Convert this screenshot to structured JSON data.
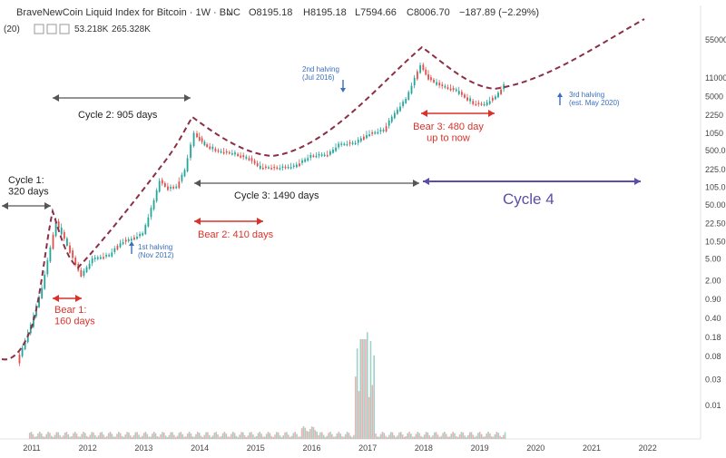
{
  "header": {
    "title": "BraveNewCoin Liquid Index for Bitcoin · 1W · BNC",
    "chevron_icon": "chevron-down-icon",
    "open": "O8195.18",
    "high": "H8195.18",
    "low": "L7594.66",
    "close": "C8006.70",
    "change": "−187.89 (−2.29%)",
    "change_color": "#e0504c",
    "ohlc_color": "#333333"
  },
  "volume_legend": {
    "label": "(20)",
    "value_1": "53.218K",
    "value_2": "265.328K",
    "value_1_color": "#e0504c",
    "value_2_color": "#26a69a"
  },
  "colors": {
    "candle_up": "#26a69a",
    "candle_down": "#e0504c",
    "model_curve": "#8b2f46",
    "cycle_arrow": "#555555",
    "bear_arrow": "#d9322b",
    "halving_arrow": "#3a6fbf",
    "cycle4_arrow": "#5c4ea8"
  },
  "chart_data": {
    "type": "line",
    "title": "BraveNewCoin Liquid Index for Bitcoin",
    "y_scale": "log",
    "grid": false,
    "x_ticks": [
      "2011",
      "2012",
      "2013",
      "2014",
      "2015",
      "2016",
      "2017",
      "2018",
      "2019",
      "2020",
      "2021",
      "2022"
    ],
    "y_ticks": [
      "55000",
      "11000",
      "5000",
      "2250",
      "1050",
      "500.0",
      "225.0",
      "105.0",
      "50.00",
      "22.50",
      "10.50",
      "5.00",
      "2.00",
      "0.90",
      "0.40",
      "0.18",
      "0.08",
      "0.03",
      "0.01"
    ],
    "series": [
      {
        "x": [
          2010.75,
          2011.0,
          2011.2,
          2011.45,
          2011.6,
          2011.8,
          2011.9,
          2012.1,
          2012.4,
          2012.6,
          2012.8,
          2013.0,
          2013.2,
          2013.3,
          2013.45,
          2013.6,
          2013.75,
          2013.92,
          2014.1,
          2014.3,
          2014.6,
          2014.9,
          2015.1,
          2015.4,
          2015.7,
          2016.0,
          2016.3,
          2016.5,
          2016.8,
          2017.0,
          2017.3,
          2017.5,
          2017.7,
          2017.96,
          2018.1,
          2018.3,
          2018.6,
          2018.9,
          2019.1,
          2019.3,
          2019.45
        ],
        "values": [
          0.06,
          0.3,
          1.5,
          25,
          12,
          4,
          2.5,
          5,
          6,
          10,
          12,
          15,
          60,
          140,
          100,
          110,
          220,
          1050,
          650,
          500,
          450,
          350,
          250,
          240,
          260,
          400,
          430,
          650,
          700,
          1000,
          1200,
          2500,
          4500,
          19000,
          11000,
          8000,
          6500,
          3700,
          3600,
          5000,
          8006.7
        ]
      }
    ],
    "annotations": {
      "cycle_1": "Cycle 1:\n320 days",
      "cycle_2": "Cycle 2: 905 days",
      "cycle_3": "Cycle 3: 1490  days",
      "cycle_4": "Cycle 4",
      "bear_1": "Bear 1:\n160 days",
      "bear_2": "Bear 2: 410 days",
      "bear_3": "Bear 3: 480 day\nup to now",
      "halving_1": "1st halving\n(Nov 2012)",
      "halving_2": "2nd halving\n(Jul 2016)",
      "halving_3": "3rd halving\n(est. May 2020)"
    }
  }
}
